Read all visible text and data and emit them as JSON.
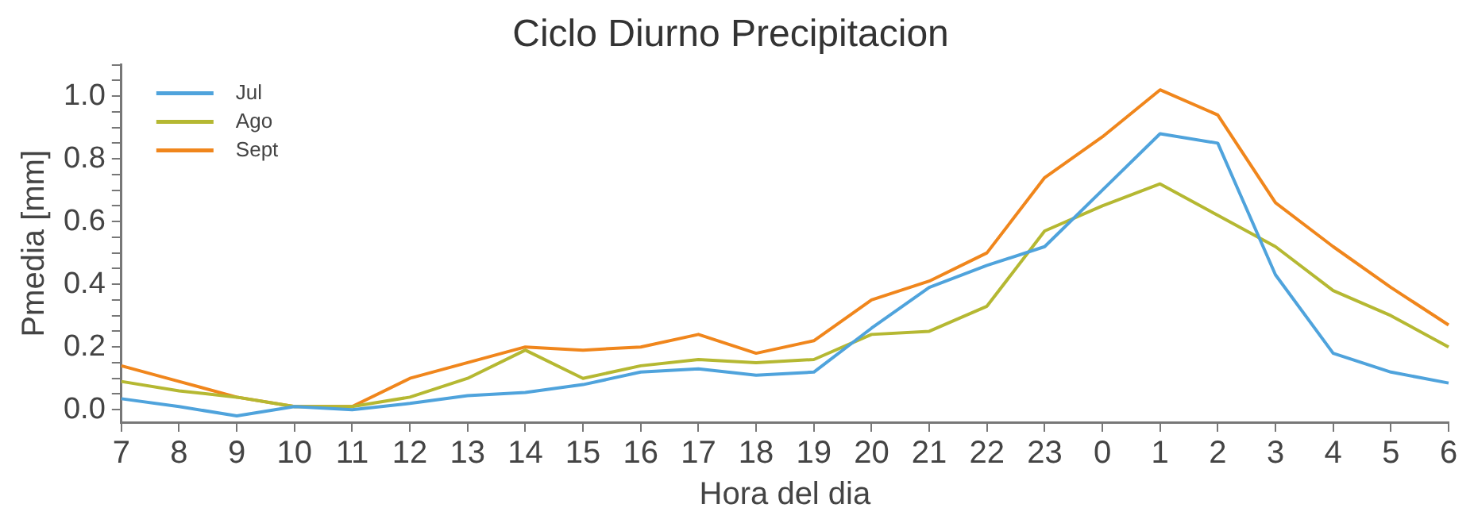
{
  "chart_data": {
    "type": "line",
    "title": "Ciclo Diurno Precipitacion",
    "xlabel": "Hora del dia",
    "ylabel": "Pmedia [mm]",
    "categories": [
      "7",
      "8",
      "9",
      "10",
      "11",
      "12",
      "13",
      "14",
      "15",
      "16",
      "17",
      "18",
      "19",
      "20",
      "21",
      "22",
      "23",
      "0",
      "1",
      "2",
      "3",
      "4",
      "5",
      "6"
    ],
    "series": [
      {
        "name": "Jul",
        "color": "#4fa3dc",
        "values": [
          0.035,
          0.01,
          -0.02,
          0.01,
          0.0,
          0.02,
          0.045,
          0.055,
          0.08,
          0.12,
          0.13,
          0.11,
          0.12,
          0.26,
          0.39,
          0.46,
          0.52,
          0.7,
          0.88,
          0.85,
          0.43,
          0.18,
          0.12,
          0.085
        ]
      },
      {
        "name": "Ago",
        "color": "#b5b832",
        "values": [
          0.09,
          0.06,
          0.04,
          0.01,
          0.01,
          0.04,
          0.1,
          0.19,
          0.1,
          0.14,
          0.16,
          0.15,
          0.16,
          0.24,
          0.25,
          0.33,
          0.57,
          0.65,
          0.72,
          0.62,
          0.52,
          0.38,
          0.3,
          0.2
        ]
      },
      {
        "name": "Sept",
        "color": "#f0861c",
        "values": [
          0.14,
          0.09,
          0.04,
          0.01,
          0.01,
          0.1,
          0.15,
          0.2,
          0.19,
          0.2,
          0.24,
          0.18,
          0.22,
          0.35,
          0.41,
          0.5,
          0.74,
          0.87,
          1.02,
          0.94,
          0.66,
          0.52,
          0.39,
          0.27
        ]
      }
    ],
    "ylim": [
      -0.04,
      1.1
    ],
    "yticks": [
      {
        "value": 0,
        "label": "0.0"
      },
      {
        "value": 0.05,
        "label": null
      },
      {
        "value": 0.1,
        "label": null
      },
      {
        "value": 0.15,
        "label": null
      },
      {
        "value": 0.2,
        "label": "0.2"
      },
      {
        "value": 0.25,
        "label": null
      },
      {
        "value": 0.3,
        "label": null
      },
      {
        "value": 0.35,
        "label": null
      },
      {
        "value": 0.4,
        "label": "0.4"
      },
      {
        "value": 0.45,
        "label": null
      },
      {
        "value": 0.5,
        "label": null
      },
      {
        "value": 0.55,
        "label": null
      },
      {
        "value": 0.6,
        "label": "0.6"
      },
      {
        "value": 0.65,
        "label": null
      },
      {
        "value": 0.7,
        "label": null
      },
      {
        "value": 0.75,
        "label": null
      },
      {
        "value": 0.8,
        "label": "0.8"
      },
      {
        "value": 0.85,
        "label": null
      },
      {
        "value": 0.9,
        "label": null
      },
      {
        "value": 0.95,
        "label": null
      },
      {
        "value": 1.0,
        "label": "1.0"
      },
      {
        "value": 1.05,
        "label": null
      },
      {
        "value": 1.1,
        "label": null
      }
    ],
    "grid": false,
    "legend": "top left",
    "marker": "none",
    "line_style": "solid"
  }
}
